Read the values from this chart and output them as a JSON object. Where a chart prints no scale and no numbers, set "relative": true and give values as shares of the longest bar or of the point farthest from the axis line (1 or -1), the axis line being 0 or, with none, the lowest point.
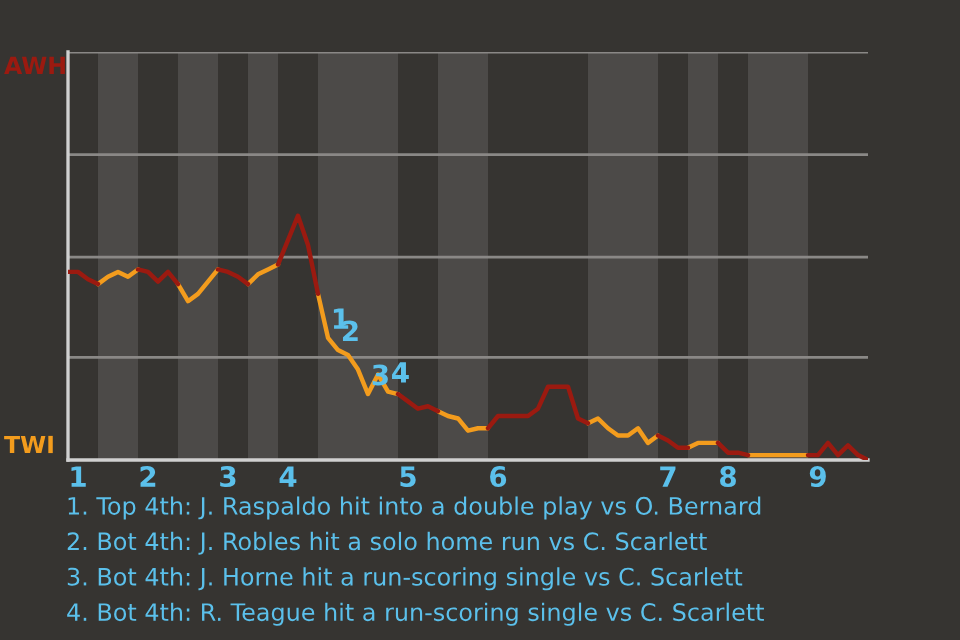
{
  "chart_data": {
    "type": "line",
    "relative": true,
    "categories": [
      null,
      "1",
      null,
      null,
      null,
      null,
      null,
      null,
      "2",
      null,
      null,
      null,
      null,
      null,
      null,
      null,
      "3",
      null,
      null,
      null,
      null,
      null,
      "4",
      null,
      null,
      null,
      null,
      null,
      null,
      null,
      null,
      null,
      null,
      null,
      "5",
      null,
      null,
      null,
      null,
      null,
      null,
      null,
      null,
      "6",
      null,
      null,
      null,
      null,
      null,
      null,
      null,
      null,
      null,
      null,
      null,
      null,
      null,
      null,
      null,
      null,
      "7",
      null,
      null,
      null,
      null,
      null,
      "8",
      null,
      null,
      null,
      null,
      null,
      null,
      null,
      null,
      "9",
      null,
      null,
      null,
      null,
      null
    ],
    "line_style": "solid",
    "ref_lines": [
      {
        "axis": "y",
        "value": 0.42,
        "color": "#8a8886"
      },
      {
        "axis": "y",
        "value": 0.83,
        "color": "#8a8886"
      },
      {
        "axis": "y",
        "value": 1.25,
        "color": "#8a8886"
      },
      {
        "axis": "y",
        "value": 1.67,
        "color": "#8a8886"
      }
    ],
    "series": [
      {
        "color": "#9b1a10",
        "values": [
          0.77,
          0.77,
          0.74,
          0.72,
          null,
          null,
          null,
          0.78,
          0.77,
          0.73,
          0.77,
          0.72,
          null,
          null,
          null,
          0.78,
          0.77,
          0.75,
          0.72,
          null,
          null,
          0.8,
          0.9,
          1,
          0.88,
          0.68,
          null,
          null,
          null,
          null,
          null,
          null,
          null,
          0.27,
          0.24,
          0.21,
          0.22,
          0.2,
          null,
          null,
          null,
          null,
          0.13,
          0.18,
          0.18,
          0.18,
          0.18,
          0.21,
          0.3,
          0.3,
          0.3,
          0.17,
          0.15,
          null,
          null,
          null,
          null,
          null,
          null,
          0.1,
          0.08,
          0.05,
          0.05,
          null,
          null,
          0.07,
          0.03,
          0.03,
          0.02,
          null,
          null,
          null,
          null,
          null,
          0.02,
          0.02,
          0.07,
          0.02,
          0.06,
          0.02,
          0
        ]
      },
      {
        "color": "#f39c1d",
        "values": [
          null,
          null,
          null,
          0.72,
          0.75,
          0.77,
          0.75,
          0.78,
          null,
          null,
          null,
          0.72,
          0.65,
          0.68,
          0.73,
          0.78,
          null,
          null,
          0.72,
          0.76,
          0.78,
          0.8,
          null,
          null,
          null,
          0.68,
          0.5,
          0.45,
          0.43,
          0.37,
          0.27,
          0.35,
          0.28,
          0.27,
          null,
          null,
          null,
          0.2,
          0.18,
          0.17,
          0.12,
          0.13,
          0.13,
          null,
          null,
          null,
          null,
          null,
          null,
          null,
          null,
          null,
          0.15,
          0.17,
          0.13,
          0.1,
          0.1,
          0.13,
          0.07,
          0.1,
          null,
          null,
          0.05,
          0.07,
          0.07,
          0.07,
          null,
          null,
          0.02,
          0.02,
          0.02,
          0.02,
          0.02,
          0.02,
          0.02,
          null,
          null,
          null,
          null,
          null,
          null
        ]
      }
    ],
    "annotations": [
      "AWH",
      "TWI",
      {
        "text": "1",
        "y": 0.5
      },
      {
        "text": "2",
        "y": 0.45
      },
      {
        "text": "3",
        "y": 0.27
      },
      {
        "text": "4",
        "y": 0.28
      },
      "1. Top 4th: J. Raspaldo hit into a double play vs O. Bernard",
      "2. Bot 4th: J. Robles hit a solo home run vs C. Scarlett",
      "3. Bot 4th: J. Horne hit a run-scoring single vs C. Scarlett",
      "4. Bot 4th: R. Teague hit a run-scoring single vs C. Scarlett"
    ]
  }
}
